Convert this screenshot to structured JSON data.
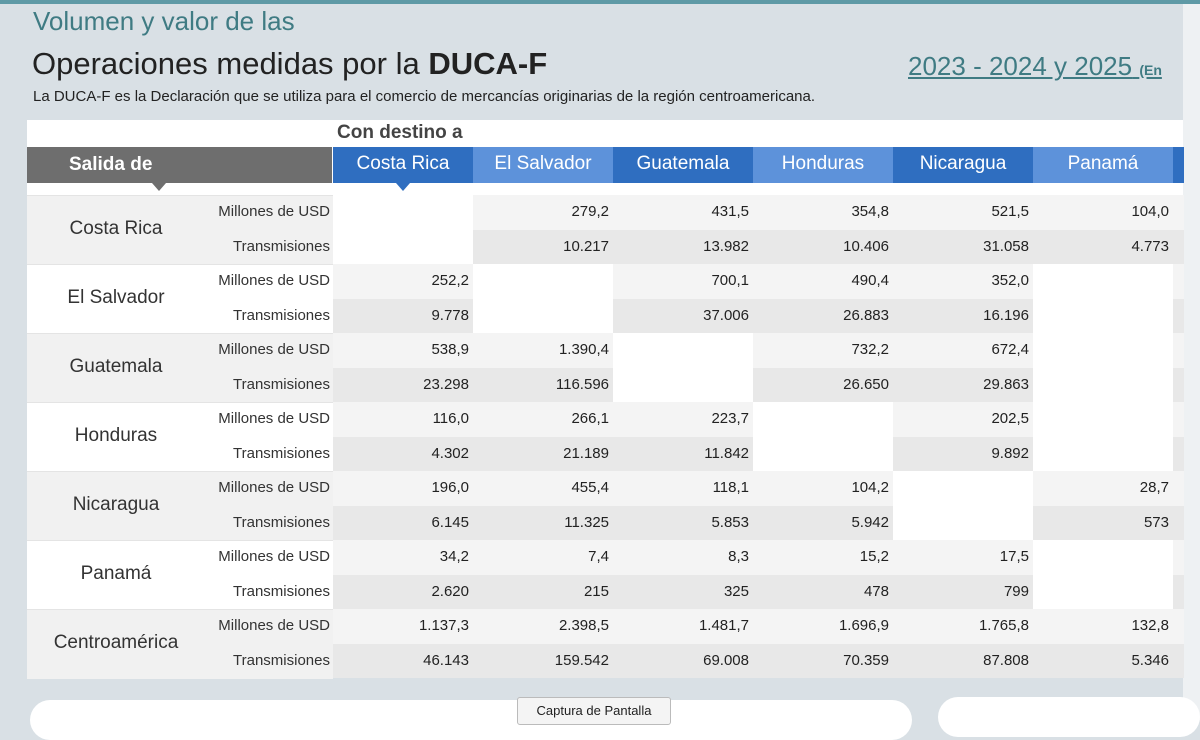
{
  "header": {
    "kicker": "Volumen y valor de las",
    "title_lead": "Operaciones medidas por la",
    "title_bold": "DUCA-F",
    "period": "2023 - 2024 y 2025",
    "period_note": "(En",
    "description": "La DUCA-F es la Declaración que se utiliza para el comercio de mercancías originarias de la región centroamericana."
  },
  "table": {
    "destination_caption": "Con destino a",
    "origin_caption": "Salida de",
    "columns": [
      "Costa Rica",
      "El Salvador",
      "Guatemala",
      "Honduras",
      "Nicaragua",
      "Panamá"
    ],
    "metrics": [
      "Millones de USD",
      "Transmisiones"
    ],
    "groups": [
      {
        "name": "Costa Rica",
        "rows": [
          [
            null,
            "279,2",
            "431,5",
            "354,8",
            "521,5",
            "104,0"
          ],
          [
            null,
            "10.217",
            "13.982",
            "10.406",
            "31.058",
            "4.773"
          ]
        ]
      },
      {
        "name": "El Salvador",
        "rows": [
          [
            "252,2",
            null,
            "700,1",
            "490,4",
            "352,0",
            null
          ],
          [
            "9.778",
            null,
            "37.006",
            "26.883",
            "16.196",
            null
          ]
        ]
      },
      {
        "name": "Guatemala",
        "rows": [
          [
            "538,9",
            "1.390,4",
            null,
            "732,2",
            "672,4",
            null
          ],
          [
            "23.298",
            "116.596",
            null,
            "26.650",
            "29.863",
            null
          ]
        ]
      },
      {
        "name": "Honduras",
        "rows": [
          [
            "116,0",
            "266,1",
            "223,7",
            null,
            "202,5",
            null
          ],
          [
            "4.302",
            "21.189",
            "11.842",
            null,
            "9.892",
            null
          ]
        ]
      },
      {
        "name": "Nicaragua",
        "rows": [
          [
            "196,0",
            "455,4",
            "118,1",
            "104,2",
            null,
            "28,7"
          ],
          [
            "6.145",
            "11.325",
            "5.853",
            "5.942",
            null,
            "573"
          ]
        ]
      },
      {
        "name": "Panamá",
        "rows": [
          [
            "34,2",
            "7,4",
            "8,3",
            "15,2",
            "17,5",
            null
          ],
          [
            "2.620",
            "215",
            "325",
            "478",
            "799",
            null
          ]
        ]
      },
      {
        "name": "Centroamérica",
        "rows": [
          [
            "1.137,3",
            "2.398,5",
            "1.481,7",
            "1.696,9",
            "1.765,8",
            "132,8"
          ],
          [
            "46.143",
            "159.542",
            "69.008",
            "70.359",
            "87.808",
            "5.346"
          ]
        ]
      }
    ]
  },
  "footer": {
    "button": "Captura de Pantalla"
  }
}
